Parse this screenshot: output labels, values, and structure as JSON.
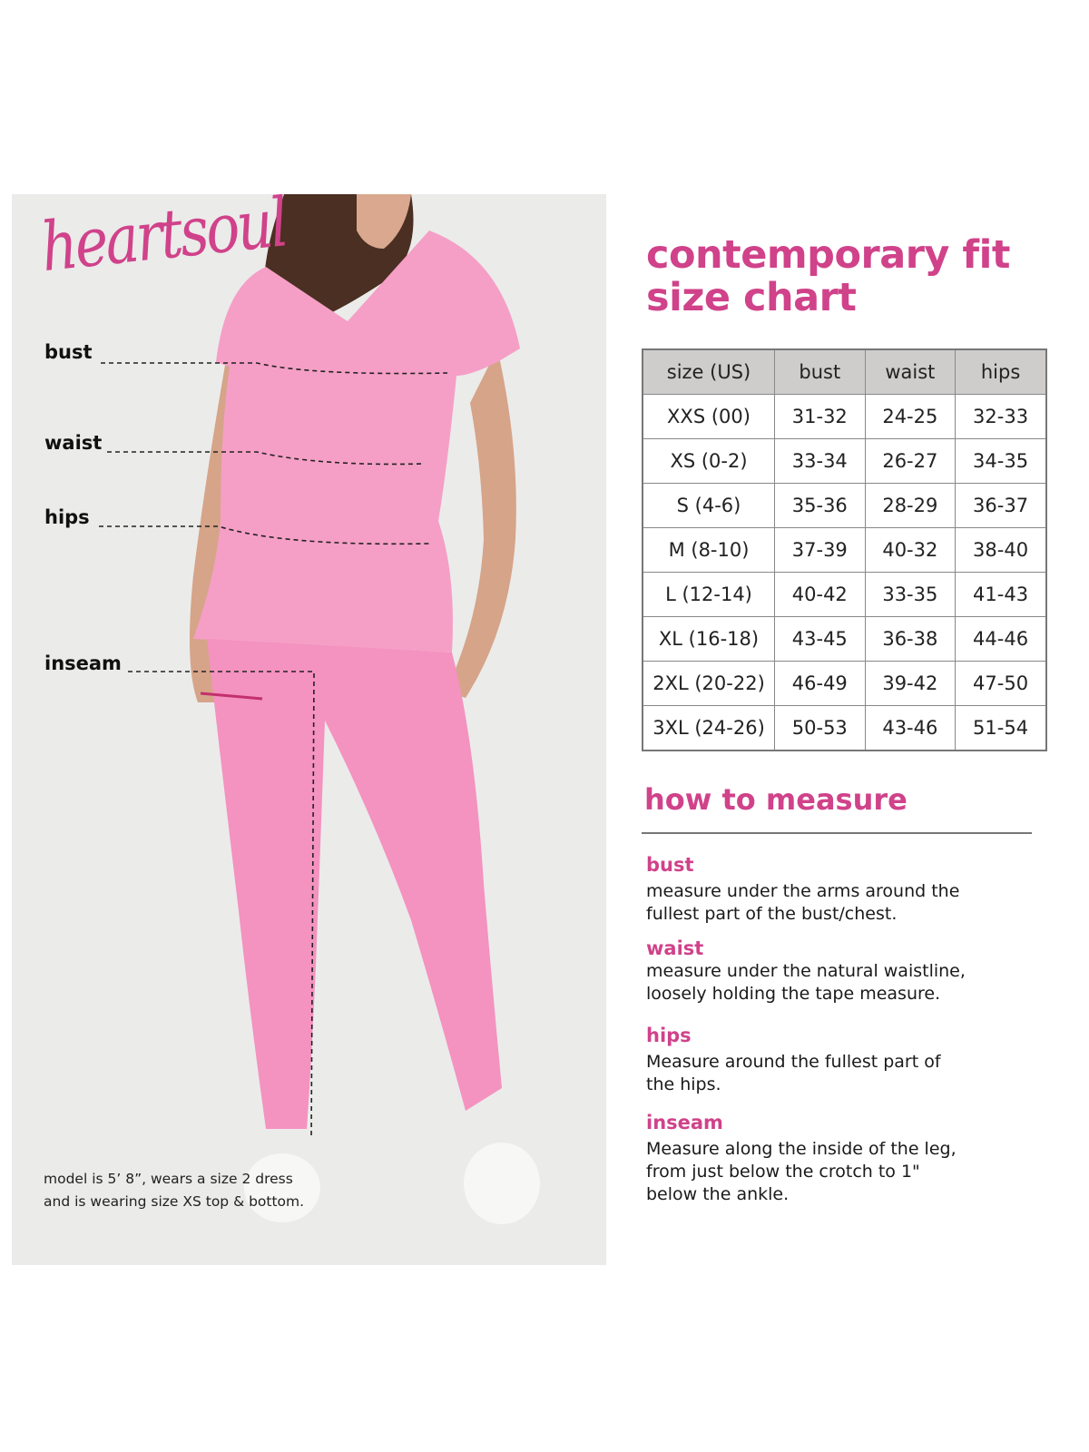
{
  "brand": {
    "logo_text": "heartsoul",
    "accent": "#d0428a"
  },
  "photo": {
    "labels": {
      "bust": "bust",
      "waist": "waist",
      "hips": "hips",
      "inseam": "inseam"
    },
    "model_note": [
      "model is 5’ 8”, wears a size 2 dress",
      "and is wearing size XS top & bottom."
    ]
  },
  "title": [
    "contemporary fit",
    "size chart"
  ],
  "size_table": {
    "headers": [
      "size (US)",
      "bust",
      "waist",
      "hips"
    ],
    "rows": [
      [
        "XXS (00)",
        "31-32",
        "24-25",
        "32-33"
      ],
      [
        "XS (0-2)",
        "33-34",
        "26-27",
        "34-35"
      ],
      [
        "S (4-6)",
        "35-36",
        "28-29",
        "36-37"
      ],
      [
        "M (8-10)",
        "37-39",
        "40-32",
        "38-40"
      ],
      [
        "L (12-14)",
        "40-42",
        "33-35",
        "41-43"
      ],
      [
        "XL (16-18)",
        "43-45",
        "36-38",
        "44-46"
      ],
      [
        "2XL (20-22)",
        "46-49",
        "39-42",
        "47-50"
      ],
      [
        "3XL (24-26)",
        "50-53",
        "43-46",
        "51-54"
      ]
    ]
  },
  "how_to_measure": {
    "heading": "how to measure",
    "sections": [
      {
        "label": "bust",
        "text": [
          "measure under the arms around the",
          "fullest part of the bust/chest."
        ]
      },
      {
        "label": "waist",
        "text": [
          "measure under the natural waistline,",
          "loosely holding the tape measure."
        ]
      },
      {
        "label": "hips",
        "text": [
          "Measure around the fullest part of",
          "the hips."
        ]
      },
      {
        "label": "inseam",
        "text": [
          "Measure along the inside of the leg,",
          "from just below the crotch to 1\"",
          "below the ankle."
        ]
      }
    ]
  }
}
